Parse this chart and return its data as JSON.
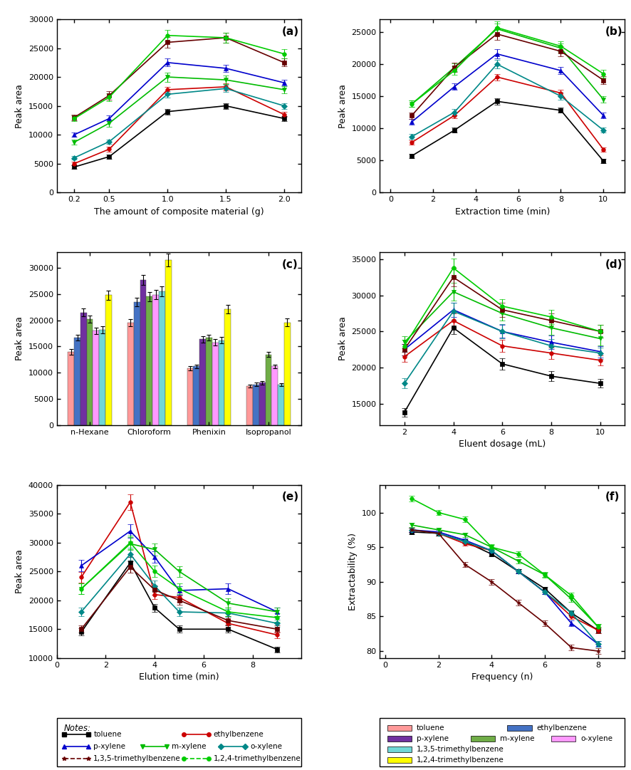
{
  "panel_a": {
    "title": "(a)",
    "xlabel": "The amount of composite material (g)",
    "ylabel": "Peak area",
    "x": [
      0.2,
      0.5,
      1.0,
      1.5,
      2.0
    ],
    "series": [
      {
        "name": "toluene",
        "y": [
          4400,
          6200,
          14000,
          15000,
          12800
        ],
        "err": [
          300,
          400,
          500,
          500,
          400
        ],
        "color": "#000000",
        "marker": "s"
      },
      {
        "name": "ethylbenzene",
        "y": [
          5000,
          7500,
          17800,
          18300,
          13500
        ],
        "err": [
          300,
          400,
          500,
          600,
          400
        ],
        "color": "#cc0000",
        "marker": "o"
      },
      {
        "name": "p-xylene",
        "y": [
          10000,
          12800,
          22500,
          21500,
          19000
        ],
        "err": [
          400,
          500,
          700,
          600,
          500
        ],
        "color": "#0000cc",
        "marker": "^"
      },
      {
        "name": "m-xylene",
        "y": [
          8700,
          12000,
          20000,
          19500,
          17800
        ],
        "err": [
          400,
          600,
          800,
          700,
          600
        ],
        "color": "#00bb00",
        "marker": "v"
      },
      {
        "name": "o-xylene",
        "y": [
          6000,
          8800,
          17000,
          18000,
          15000
        ],
        "err": [
          300,
          400,
          600,
          600,
          500
        ],
        "color": "#008888",
        "marker": "D"
      },
      {
        "name": "1,3,5-trimethylbenzene",
        "y": [
          13000,
          16800,
          26000,
          26800,
          22500
        ],
        "err": [
          500,
          700,
          900,
          900,
          700
        ],
        "color": "#660000",
        "marker": "s"
      },
      {
        "name": "1,2,4-trimethylbenzene",
        "y": [
          12800,
          16500,
          27200,
          26800,
          24000
        ],
        "err": [
          500,
          700,
          1000,
          900,
          800
        ],
        "color": "#00cc00",
        "marker": "o"
      }
    ],
    "ylim": [
      0,
      30000
    ],
    "yticks": [
      0,
      5000,
      10000,
      15000,
      20000,
      25000,
      30000
    ],
    "xticks": [
      0.2,
      0.5,
      1.0,
      1.5,
      2.0
    ],
    "xlim": [
      0.05,
      2.15
    ]
  },
  "panel_b": {
    "title": "(b)",
    "xlabel": "Extraction time (min)",
    "ylabel": "Peak area",
    "x": [
      1,
      3,
      5,
      8,
      10
    ],
    "series": [
      {
        "name": "toluene",
        "y": [
          5700,
          9700,
          14200,
          12800,
          4900
        ],
        "err": [
          300,
          400,
          500,
          400,
          300
        ],
        "color": "#000000",
        "marker": "s"
      },
      {
        "name": "ethylbenzene",
        "y": [
          7800,
          12000,
          18000,
          15500,
          6700
        ],
        "err": [
          300,
          400,
          500,
          500,
          300
        ],
        "color": "#cc0000",
        "marker": "o"
      },
      {
        "name": "p-xylene",
        "y": [
          11000,
          16500,
          21600,
          19000,
          12000
        ],
        "err": [
          400,
          500,
          700,
          600,
          400
        ],
        "color": "#0000cc",
        "marker": "^"
      },
      {
        "name": "m-xylene",
        "y": [
          13800,
          19500,
          25500,
          22500,
          14500
        ],
        "err": [
          500,
          600,
          800,
          700,
          500
        ],
        "color": "#00bb00",
        "marker": "v"
      },
      {
        "name": "o-xylene",
        "y": [
          8700,
          12500,
          20000,
          15000,
          9700
        ],
        "err": [
          400,
          500,
          700,
          600,
          400
        ],
        "color": "#008888",
        "marker": "D"
      },
      {
        "name": "1,3,5-trimethylbenzene",
        "y": [
          12000,
          19500,
          24700,
          22000,
          17500
        ],
        "err": [
          500,
          700,
          900,
          800,
          600
        ],
        "color": "#660000",
        "marker": "s"
      },
      {
        "name": "1,2,4-trimethylbenzene",
        "y": [
          13800,
          19000,
          25700,
          22800,
          18500
        ],
        "err": [
          500,
          700,
          1000,
          800,
          600
        ],
        "color": "#00cc00",
        "marker": "o"
      }
    ],
    "ylim": [
      0,
      27000
    ],
    "yticks": [
      0,
      5000,
      10000,
      15000,
      20000,
      25000
    ],
    "xticks": [
      0,
      2,
      4,
      6,
      8,
      10
    ],
    "xlim": [
      -0.5,
      11
    ]
  },
  "panel_c": {
    "title": "(c)",
    "ylabel": "Peak area",
    "categories": [
      "n-Hexane",
      "Chloroform",
      "Phenixin",
      "Isopropanol"
    ],
    "bar_colors": [
      "#ff9999",
      "#4472c4",
      "#7030a0",
      "#70ad47",
      "#ff99ff",
      "#70d7d7",
      "#ffff00"
    ],
    "series": [
      {
        "name": "toluene",
        "vals": [
          14000,
          19500,
          10800,
          7500
        ],
        "err": [
          500,
          700,
          400,
          300
        ]
      },
      {
        "name": "ethylbenzene",
        "vals": [
          16700,
          23500,
          11200,
          7800
        ],
        "err": [
          600,
          800,
          400,
          300
        ]
      },
      {
        "name": "p-xylene",
        "vals": [
          21500,
          27700,
          16400,
          8100
        ],
        "err": [
          700,
          1000,
          600,
          300
        ]
      },
      {
        "name": "m-xylene",
        "vals": [
          20200,
          24500,
          16700,
          13500
        ],
        "err": [
          700,
          900,
          600,
          500
        ]
      },
      {
        "name": "o-xylene",
        "vals": [
          18000,
          24900,
          15800,
          11200
        ],
        "err": [
          600,
          900,
          600,
          400
        ]
      },
      {
        "name": "1,3,5-trimethylbenzene",
        "vals": [
          18200,
          25500,
          16200,
          7700
        ],
        "err": [
          700,
          900,
          600,
          300
        ]
      },
      {
        "name": "1,2,4-trimethylbenzene",
        "vals": [
          24800,
          31500,
          22100,
          19600
        ],
        "err": [
          900,
          1200,
          800,
          700
        ]
      }
    ],
    "ylim": [
      0,
      33000
    ],
    "yticks": [
      0,
      5000,
      10000,
      15000,
      20000,
      25000,
      30000
    ]
  },
  "panel_d": {
    "title": "(d)",
    "xlabel": "Eluent dosage (mL)",
    "ylabel": "Peak area",
    "x": [
      2,
      4,
      6,
      8,
      10
    ],
    "series": [
      {
        "name": "toluene",
        "y": [
          13800,
          25500,
          20500,
          18800,
          17800
        ],
        "err": [
          600,
          900,
          800,
          700,
          600
        ],
        "color": "#000000",
        "marker": "s"
      },
      {
        "name": "ethylbenzene",
        "y": [
          21500,
          26500,
          23000,
          22000,
          21000
        ],
        "err": [
          700,
          1000,
          800,
          800,
          700
        ],
        "color": "#cc0000",
        "marker": "o"
      },
      {
        "name": "p-xylene",
        "y": [
          22500,
          28000,
          25000,
          23500,
          22200
        ],
        "err": [
          800,
          1000,
          900,
          900,
          800
        ],
        "color": "#0000cc",
        "marker": "^"
      },
      {
        "name": "m-xylene",
        "y": [
          23500,
          30500,
          27500,
          25500,
          24000
        ],
        "err": [
          800,
          1200,
          1000,
          1000,
          900
        ],
        "color": "#00bb00",
        "marker": "v"
      },
      {
        "name": "o-xylene",
        "y": [
          17800,
          27800,
          25000,
          23000,
          22000
        ],
        "err": [
          700,
          1200,
          1000,
          900,
          800
        ],
        "color": "#008888",
        "marker": "D"
      },
      {
        "name": "1,3,5-trimethylbenzene",
        "y": [
          22500,
          32500,
          28000,
          26500,
          25000
        ],
        "err": [
          800,
          1300,
          1000,
          1000,
          900
        ],
        "color": "#660000",
        "marker": "s"
      },
      {
        "name": "1,2,4-trimethylbenzene",
        "y": [
          23000,
          33800,
          28500,
          27000,
          25000
        ],
        "err": [
          800,
          1300,
          1000,
          1000,
          900
        ],
        "color": "#00cc00",
        "marker": "o"
      }
    ],
    "ylim": [
      12000,
      36000
    ],
    "yticks": [
      15000,
      20000,
      25000,
      30000,
      35000
    ],
    "xticks": [
      2,
      4,
      6,
      8,
      10
    ],
    "xlim": [
      1,
      11
    ]
  },
  "panel_e": {
    "title": "(e)",
    "xlabel": "Elution time (min)",
    "ylabel": "Peak area",
    "x": [
      1,
      3,
      4,
      5,
      7,
      9
    ],
    "series": [
      {
        "name": "toluene",
        "y": [
          14500,
          26500,
          18700,
          15000,
          15000,
          11500
        ],
        "err": [
          600,
          1000,
          700,
          600,
          600,
          500
        ],
        "color": "#000000",
        "marker": "s"
      },
      {
        "name": "ethylbenzene",
        "y": [
          24000,
          37000,
          21000,
          20500,
          16000,
          14000
        ],
        "err": [
          900,
          1300,
          800,
          800,
          700,
          600
        ],
        "color": "#cc0000",
        "marker": "o"
      },
      {
        "name": "p-xylene",
        "y": [
          26000,
          32000,
          27500,
          21700,
          22000,
          18000
        ],
        "err": [
          1000,
          1200,
          1000,
          800,
          900,
          700
        ],
        "color": "#0000cc",
        "marker": "^"
      },
      {
        "name": "m-xylene",
        "y": [
          22000,
          29800,
          28800,
          25000,
          19500,
          18000
        ],
        "err": [
          900,
          1100,
          1100,
          900,
          800,
          700
        ],
        "color": "#00bb00",
        "marker": "v"
      },
      {
        "name": "o-xylene",
        "y": [
          18000,
          28000,
          22500,
          18000,
          17800,
          16000
        ],
        "err": [
          700,
          1100,
          900,
          700,
          700,
          600
        ],
        "color": "#008888",
        "marker": "D"
      },
      {
        "name": "1,3,5-trimethylbenzene",
        "y": [
          15000,
          25800,
          21800,
          20000,
          16500,
          15000
        ],
        "err": [
          600,
          1000,
          800,
          800,
          700,
          600
        ],
        "color": "#660000",
        "marker": "s"
      },
      {
        "name": "1,2,4-trimethylbenzene",
        "y": [
          22000,
          30000,
          25000,
          22000,
          18000,
          17000
        ],
        "err": [
          900,
          1200,
          1000,
          900,
          700,
          700
        ],
        "color": "#00cc00",
        "marker": "o"
      }
    ],
    "ylim": [
      10000,
      40000
    ],
    "yticks": [
      10000,
      15000,
      20000,
      25000,
      30000,
      35000,
      40000
    ],
    "xticks": [
      0,
      2,
      4,
      6,
      8
    ],
    "xlim": [
      0,
      10
    ]
  },
  "panel_f": {
    "title": "(f)",
    "xlabel": "Frequency (n)",
    "ylabel": "Extractability (%)",
    "x": [
      1,
      2,
      3,
      4,
      5,
      6,
      7,
      8
    ],
    "series": [
      {
        "name": "toluene",
        "y": [
          97.2,
          97.0,
          95.8,
          94.0,
          91.5,
          89.0,
          85.5,
          83.0
        ],
        "err": [
          0.3,
          0.3,
          0.3,
          0.3,
          0.3,
          0.3,
          0.4,
          0.4
        ],
        "color": "#000000",
        "marker": "s"
      },
      {
        "name": "ethylbenzene",
        "y": [
          97.5,
          97.0,
          95.5,
          94.5,
          91.5,
          88.5,
          85.0,
          83.0
        ],
        "err": [
          0.3,
          0.3,
          0.3,
          0.3,
          0.3,
          0.3,
          0.4,
          0.4
        ],
        "color": "#cc0000",
        "marker": "o"
      },
      {
        "name": "p-xylene",
        "y": [
          97.5,
          97.2,
          96.0,
          94.5,
          91.5,
          88.5,
          84.0,
          81.0
        ],
        "err": [
          0.3,
          0.3,
          0.3,
          0.3,
          0.3,
          0.3,
          0.4,
          0.4
        ],
        "color": "#0000cc",
        "marker": "^"
      },
      {
        "name": "m-xylene",
        "y": [
          98.2,
          97.5,
          96.8,
          95.0,
          93.0,
          91.0,
          87.5,
          83.5
        ],
        "err": [
          0.3,
          0.3,
          0.3,
          0.3,
          0.3,
          0.3,
          0.4,
          0.4
        ],
        "color": "#00bb00",
        "marker": "v"
      },
      {
        "name": "o-xylene",
        "y": [
          97.5,
          97.0,
          95.8,
          94.5,
          91.5,
          88.5,
          85.5,
          81.0
        ],
        "err": [
          0.3,
          0.3,
          0.3,
          0.3,
          0.3,
          0.3,
          0.4,
          0.4
        ],
        "color": "#008888",
        "marker": "D"
      },
      {
        "name": "1,3,5-trimethylbenzene",
        "y": [
          97.5,
          97.0,
          92.5,
          90.0,
          87.0,
          84.0,
          80.5,
          80.0
        ],
        "err": [
          0.3,
          0.3,
          0.4,
          0.4,
          0.4,
          0.4,
          0.4,
          0.4
        ],
        "color": "#660000",
        "marker": "*"
      },
      {
        "name": "1,2,4-trimethylbenzene",
        "y": [
          102.0,
          100.0,
          99.0,
          95.0,
          94.0,
          91.0,
          88.0,
          83.5
        ],
        "err": [
          0.4,
          0.4,
          0.4,
          0.4,
          0.4,
          0.4,
          0.4,
          0.4
        ],
        "color": "#00cc00",
        "marker": "o"
      }
    ],
    "ylim": [
      79,
      104
    ],
    "yticks": [
      80,
      85,
      90,
      95,
      100
    ],
    "xticks": [
      0,
      2,
      4,
      6,
      8
    ],
    "xlim": [
      -0.2,
      9
    ]
  },
  "notes_legend": {
    "line1": [
      "toluene",
      "ethylbenzene"
    ],
    "line2": [
      "p-xylene",
      "m-xylene",
      "o-xylene"
    ],
    "line3": [
      "1,3,5-trimethylbenzene",
      "1,2,4-trimethylbenzene"
    ],
    "colors": [
      "#000000",
      "#cc0000",
      "#0000cc",
      "#00bb00",
      "#008888",
      "#660000",
      "#00cc00"
    ],
    "markers": [
      "s",
      "o",
      "^",
      "v",
      "D",
      "*",
      "o"
    ],
    "linestyles": [
      "-",
      "-",
      "-",
      "-",
      "-",
      "--",
      "--"
    ]
  },
  "bar_legend": {
    "labels": [
      "toluene",
      "ethylbenzene",
      "p-xylene",
      "m-xylene",
      "o-xylene",
      "1,3,5-trimethylbenzene",
      "1,2,4-trimethylbenzene"
    ],
    "colors": [
      "#ff9999",
      "#4472c4",
      "#7030a0",
      "#70ad47",
      "#ff99ff",
      "#70d7d7",
      "#ffff00"
    ]
  }
}
